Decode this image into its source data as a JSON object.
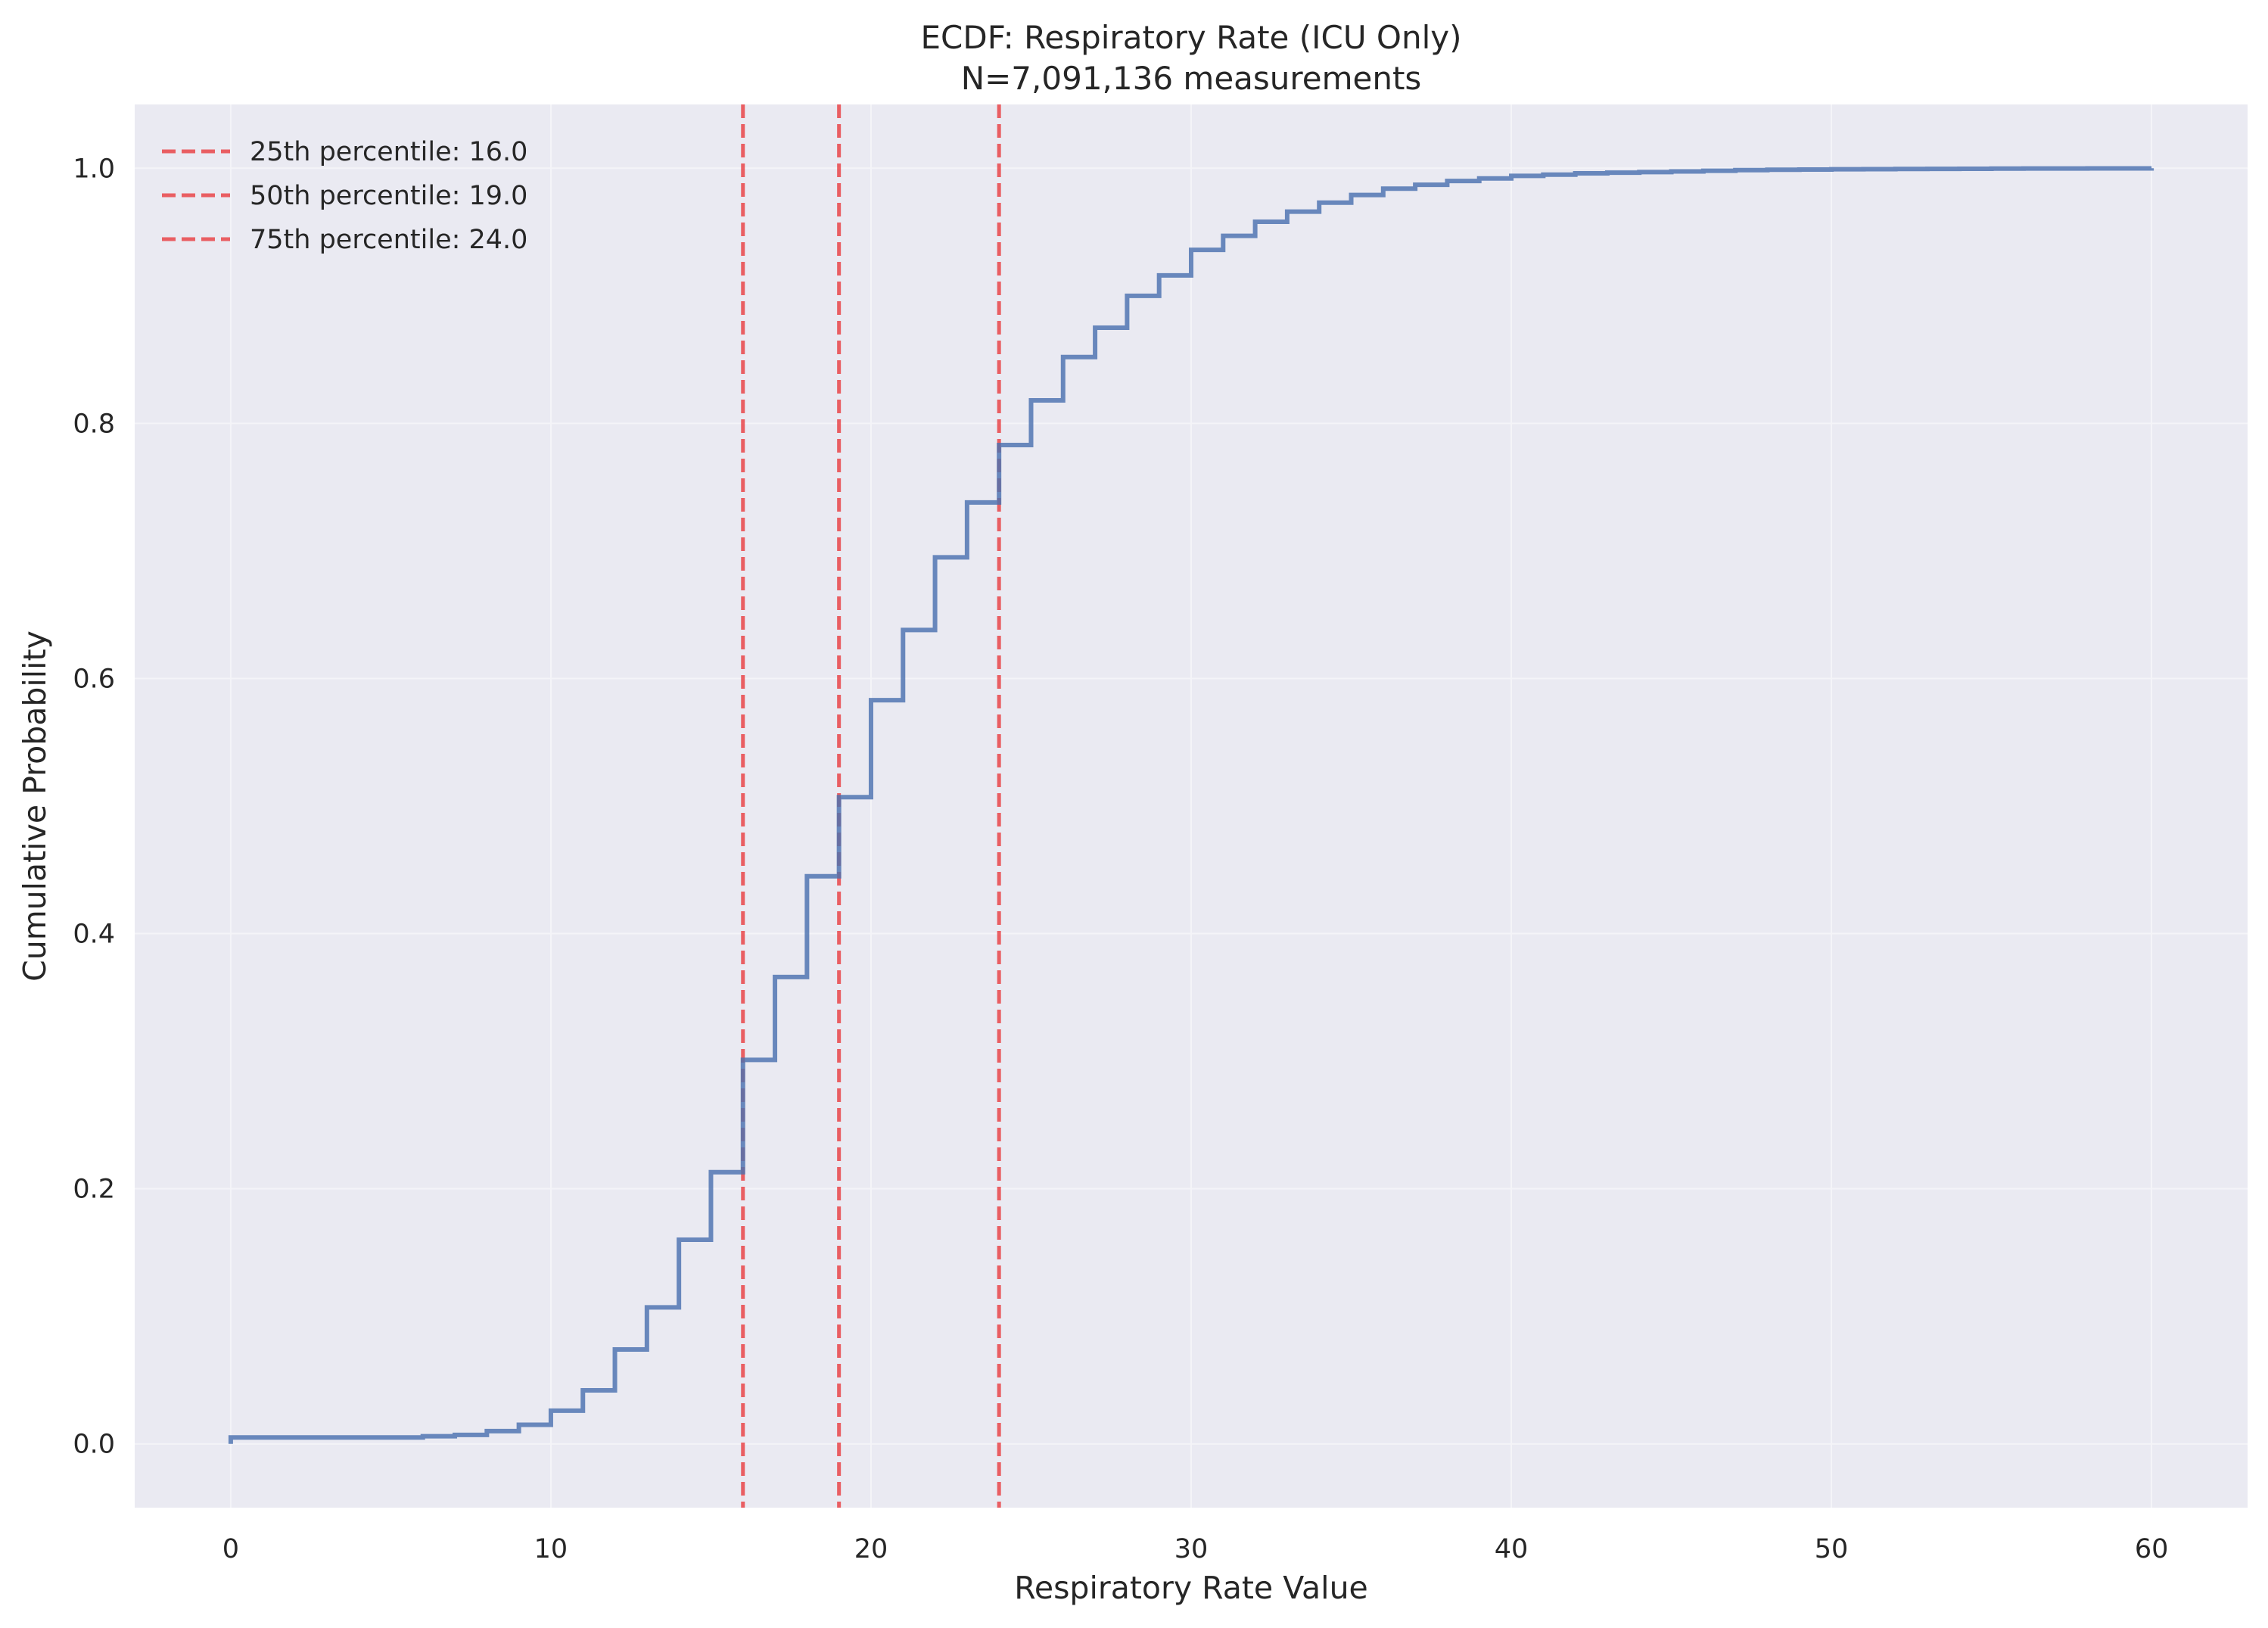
{
  "chart_data": {
    "type": "line",
    "subtype": "ecdf-step",
    "title": "ECDF: Respiratory Rate (ICU Only)",
    "subtitle": "N=7,091,136 measurements",
    "xlabel": "Respiratory Rate Value",
    "ylabel": "Cumulative Probability",
    "xlim": [
      -3,
      63
    ],
    "ylim": [
      -0.05,
      1.05
    ],
    "xticks": [
      0,
      10,
      20,
      30,
      40,
      50,
      60
    ],
    "yticks": [
      0.0,
      0.2,
      0.4,
      0.6,
      0.8,
      1.0
    ],
    "xtick_labels": [
      "0",
      "10",
      "20",
      "30",
      "40",
      "50",
      "60"
    ],
    "ytick_labels": [
      "0.0",
      "0.2",
      "0.4",
      "0.6",
      "0.8",
      "1.0"
    ],
    "grid": true,
    "legend_position": "top-left",
    "series": [
      {
        "x": [
          0,
          1,
          2,
          3,
          4,
          5,
          6,
          7,
          8,
          9,
          10,
          11,
          12,
          13,
          14,
          15,
          16,
          17,
          18,
          19,
          20,
          21,
          22,
          23,
          24,
          25,
          26,
          27,
          28,
          29,
          30,
          31,
          32,
          33,
          34,
          35,
          36,
          37,
          38,
          39,
          40,
          41,
          42,
          43,
          44,
          45,
          46,
          47,
          48,
          49,
          50,
          51,
          52,
          53,
          54,
          55,
          56,
          57,
          58,
          59,
          60
        ],
        "y": [
          0.005,
          0.005,
          0.005,
          0.005,
          0.005,
          0.005,
          0.006,
          0.007,
          0.01,
          0.015,
          0.026,
          0.042,
          0.074,
          0.107,
          0.16,
          0.213,
          0.301,
          0.366,
          0.445,
          0.507,
          0.583,
          0.638,
          0.695,
          0.738,
          0.783,
          0.818,
          0.852,
          0.875,
          0.9,
          0.916,
          0.936,
          0.947,
          0.958,
          0.966,
          0.973,
          0.979,
          0.984,
          0.987,
          0.99,
          0.992,
          0.994,
          0.995,
          0.996,
          0.9965,
          0.997,
          0.9975,
          0.998,
          0.9985,
          0.9988,
          0.999,
          0.9992,
          0.9993,
          0.9994,
          0.9995,
          0.9996,
          0.9997,
          0.9998,
          0.9998,
          0.9999,
          0.9999,
          1.0
        ],
        "color": "#4c72b0"
      }
    ],
    "reference_lines": [
      {
        "x": 16.0,
        "label": "25th percentile: 16.0",
        "color": "#e8363a",
        "style": "dashed"
      },
      {
        "x": 19.0,
        "label": "50th percentile: 19.0",
        "color": "#e8363a",
        "style": "dashed"
      },
      {
        "x": 24.0,
        "label": "75th percentile: 24.0",
        "color": "#e8363a",
        "style": "dashed"
      }
    ],
    "colors": {
      "plot_background": "#eaeaf2",
      "grid": "#f4f4f8",
      "series": "#4c72b0",
      "reference": "#e8363a"
    }
  }
}
